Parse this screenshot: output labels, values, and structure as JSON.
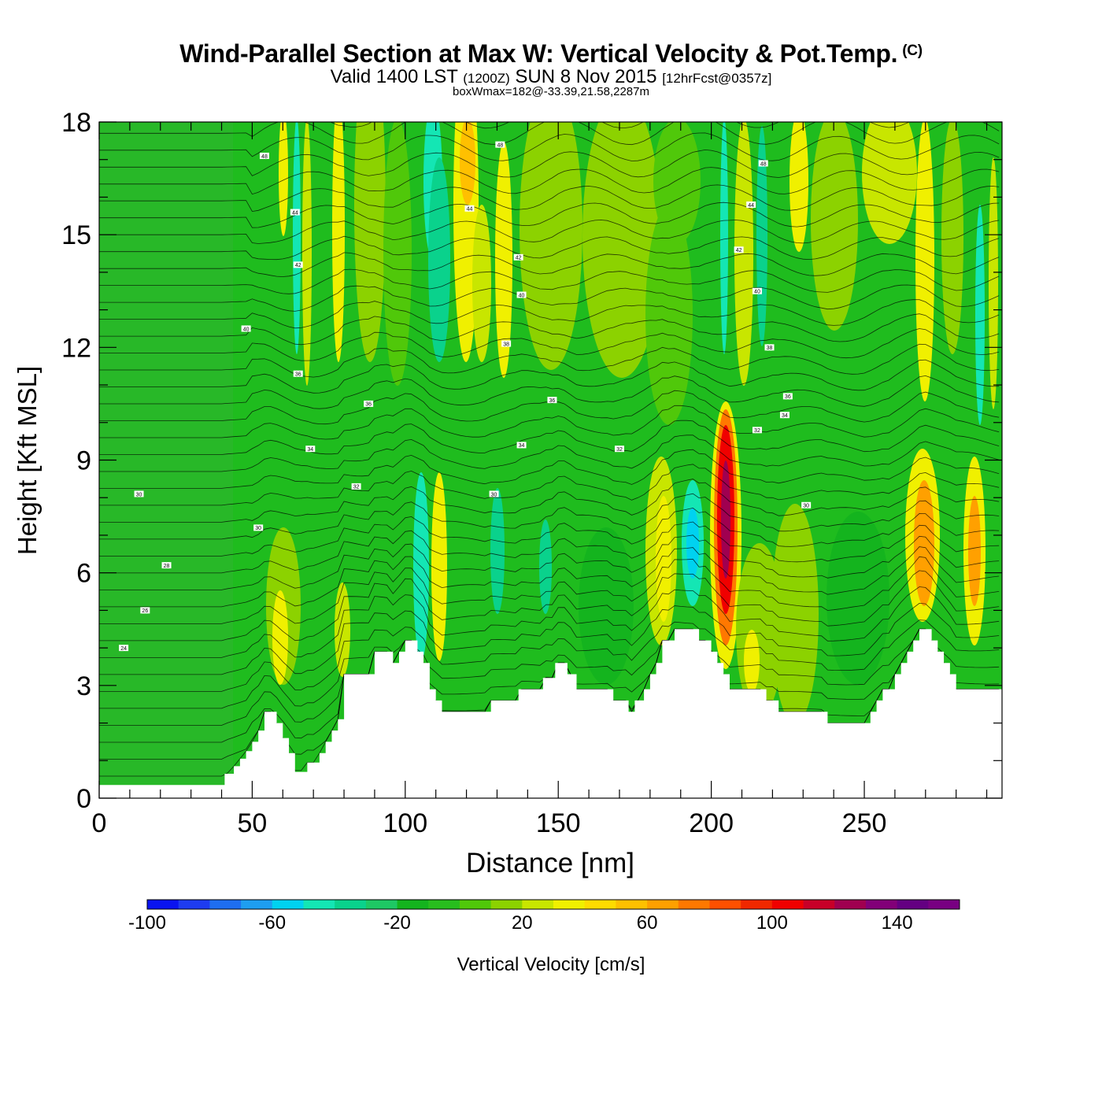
{
  "title": {
    "main": "Wind-Parallel Section at Max W: Vertical Velocity & Pot.Temp.",
    "copyright": "(C)",
    "valid_prefix": "Valid 1400 LST",
    "valid_utc": "(1200Z)",
    "valid_date": "SUN 8 Nov 2015",
    "forecast": "[12hrFcst@0357z]",
    "boxwmax": "boxWmax=182@-33.39,21.58,2287m"
  },
  "chart_data": {
    "type": "heatmap",
    "xlabel": "Distance [nm]",
    "ylabel": "Height [Kft MSL]",
    "xlim": [
      0,
      295
    ],
    "ylim": [
      0,
      18
    ],
    "x_ticks": [
      0,
      50,
      100,
      150,
      200,
      250
    ],
    "y_ticks": [
      0,
      3,
      6,
      9,
      12,
      15,
      18
    ],
    "colorbar": {
      "label": "Vertical Velocity [cm/s]",
      "min": -100,
      "max": 160,
      "step": 10,
      "tick_values": [
        -100,
        -60,
        -20,
        20,
        60,
        100,
        140
      ],
      "tick_labels": [
        "-100",
        "-60",
        "-20",
        "20",
        "60",
        "100",
        "140"
      ],
      "colors": [
        "#0a14f0",
        "#1e3cf0",
        "#1e6ef0",
        "#1e9ef0",
        "#00d2f0",
        "#14e6b4",
        "#0ad28c",
        "#1ec864",
        "#14b41e",
        "#28be1e",
        "#50c80a",
        "#8cd200",
        "#c8e600",
        "#f0f000",
        "#ffdc00",
        "#ffc000",
        "#ffa000",
        "#ff7800",
        "#ff5000",
        "#f02800",
        "#f00000",
        "#c80028",
        "#a00050",
        "#820078",
        "#640082",
        "#780082"
      ]
    },
    "terrain_kft": {
      "x": [
        0,
        40,
        41,
        44,
        46,
        48,
        50,
        52,
        54,
        56,
        58,
        60,
        62,
        64,
        66,
        68,
        70,
        72,
        74,
        76,
        78,
        80,
        85,
        90,
        95,
        96,
        98,
        100,
        104,
        106,
        108,
        110,
        112,
        120,
        125,
        128,
        130,
        135,
        137,
        140,
        143,
        145,
        149,
        150,
        153,
        156,
        160,
        165,
        168,
        170,
        172,
        173,
        175,
        176,
        178,
        180,
        182,
        184,
        186,
        188,
        190,
        195,
        196,
        198,
        200,
        202,
        204,
        206,
        210,
        215,
        218,
        220,
        222,
        225,
        230,
        235,
        238,
        240,
        245,
        250,
        252,
        254,
        256,
        258,
        260,
        262,
        264,
        266,
        268,
        270,
        272,
        274,
        276,
        278,
        280,
        285,
        295
      ],
      "y": [
        0.35,
        0.35,
        0.65,
        0.85,
        1.05,
        1.25,
        1.5,
        1.8,
        2.3,
        2.3,
        2.0,
        1.6,
        1.2,
        0.7,
        0.7,
        0.95,
        0.95,
        1.2,
        1.5,
        1.8,
        2.1,
        3.3,
        3.3,
        3.9,
        3.9,
        3.6,
        3.9,
        4.2,
        3.9,
        3.6,
        2.9,
        2.6,
        2.3,
        2.3,
        2.3,
        2.6,
        2.6,
        2.6,
        2.9,
        2.9,
        2.9,
        3.2,
        3.6,
        3.6,
        3.3,
        2.9,
        2.9,
        2.9,
        2.6,
        2.6,
        2.6,
        2.3,
        2.6,
        2.6,
        2.9,
        3.3,
        3.6,
        4.2,
        4.2,
        4.5,
        4.5,
        4.5,
        4.2,
        4.2,
        3.9,
        3.6,
        3.3,
        2.9,
        2.9,
        2.9,
        2.6,
        2.6,
        2.3,
        2.3,
        2.3,
        2.3,
        2.0,
        2.0,
        2.0,
        2.0,
        2.3,
        2.6,
        2.9,
        2.9,
        3.3,
        3.6,
        3.9,
        4.2,
        4.5,
        4.5,
        4.2,
        3.9,
        3.6,
        3.3,
        2.9,
        2.9,
        2.9
      ]
    },
    "theta_contour_labels": [
      {
        "text": "48",
        "x": 54,
        "y": 17.1
      },
      {
        "text": "44",
        "x": 64,
        "y": 15.6
      },
      {
        "text": "42",
        "x": 65,
        "y": 14.2
      },
      {
        "text": "40",
        "x": 48,
        "y": 12.5
      },
      {
        "text": "36",
        "x": 65,
        "y": 11.3
      },
      {
        "text": "36",
        "x": 88,
        "y": 10.5
      },
      {
        "text": "34",
        "x": 69,
        "y": 9.3
      },
      {
        "text": "32",
        "x": 84,
        "y": 8.3
      },
      {
        "text": "30",
        "x": 13,
        "y": 8.1
      },
      {
        "text": "30",
        "x": 52,
        "y": 7.2
      },
      {
        "text": "28",
        "x": 22,
        "y": 6.2
      },
      {
        "text": "26",
        "x": 15,
        "y": 5.0
      },
      {
        "text": "24",
        "x": 8,
        "y": 4.0
      },
      {
        "text": "48",
        "x": 131,
        "y": 17.4
      },
      {
        "text": "44",
        "x": 121,
        "y": 15.7
      },
      {
        "text": "42",
        "x": 137,
        "y": 14.4
      },
      {
        "text": "40",
        "x": 138,
        "y": 13.4
      },
      {
        "text": "38",
        "x": 133,
        "y": 12.1
      },
      {
        "text": "36",
        "x": 148,
        "y": 10.6
      },
      {
        "text": "34",
        "x": 138,
        "y": 9.4
      },
      {
        "text": "32",
        "x": 170,
        "y": 9.3
      },
      {
        "text": "30",
        "x": 129,
        "y": 8.1
      },
      {
        "text": "48",
        "x": 217,
        "y": 16.9
      },
      {
        "text": "44",
        "x": 213,
        "y": 15.8
      },
      {
        "text": "42",
        "x": 209,
        "y": 14.6
      },
      {
        "text": "40",
        "x": 215,
        "y": 13.5
      },
      {
        "text": "38",
        "x": 219,
        "y": 12.0
      },
      {
        "text": "36",
        "x": 225,
        "y": 10.7
      },
      {
        "text": "34",
        "x": 224,
        "y": 10.2
      },
      {
        "text": "32",
        "x": 215,
        "y": 9.8
      },
      {
        "text": "30",
        "x": 231,
        "y": 7.8
      }
    ]
  }
}
